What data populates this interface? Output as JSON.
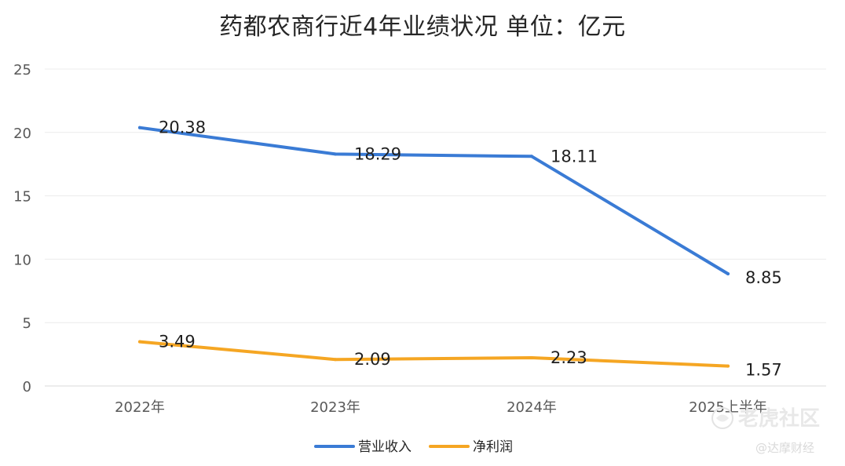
{
  "chart_data": {
    "type": "line",
    "title": "药都农商行近4年业绩状况      单位：亿元",
    "categories": [
      "2022年",
      "2023年",
      "2024年",
      "2025上半年"
    ],
    "ylim": [
      0,
      25
    ],
    "yticks": [
      0,
      5,
      10,
      15,
      20,
      25
    ],
    "grid": true,
    "legend_position": "bottom",
    "series": [
      {
        "name": "营业收入",
        "color": "#3a7bd5",
        "values": [
          20.38,
          18.29,
          18.11,
          8.85
        ],
        "labels": [
          "20.38",
          "18.29",
          "18.11",
          "8.85"
        ]
      },
      {
        "name": "净利润",
        "color": "#f5a623",
        "values": [
          3.49,
          2.09,
          2.23,
          1.57
        ],
        "labels": [
          "3.49",
          "2.09",
          "2.23",
          "1.57"
        ]
      }
    ]
  },
  "watermark": {
    "line1": "老虎社区",
    "line2": "@达摩财经",
    "icon": "tiger-logo-icon"
  }
}
